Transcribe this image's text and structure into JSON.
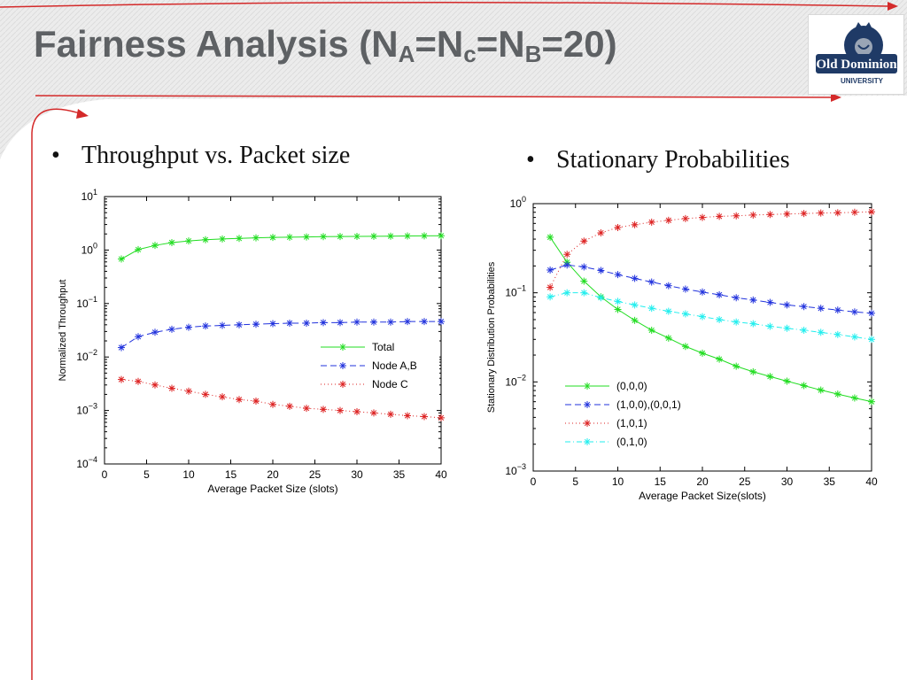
{
  "slide": {
    "title_main": "Fairness Analysis (N",
    "title_sub_a": "A",
    "title_eq1": "=N",
    "title_sub_c": "c",
    "title_eq2": "=N",
    "title_sub_b": "B",
    "title_end": "=20)",
    "accent_color": "#d42a2a",
    "bullet_char": "•",
    "bullet_left": "Throughput vs. Packet size",
    "bullet_right": "Stationary Probabilities",
    "logo": {
      "icon": "old-dominion-monarch-logo",
      "text_main": "Old Dominion",
      "text_sub": "UNIVERSITY",
      "colors": {
        "navy": "#1f3a66",
        "silver": "#9aa5b5"
      }
    }
  },
  "chart_data": [
    {
      "type": "line",
      "yscale": "log",
      "xlabel": "Average Packet Size (slots)",
      "ylabel": "Normalized Throughput",
      "xlim": [
        0,
        40
      ],
      "xticks": [
        "0",
        "5",
        "10",
        "15",
        "20",
        "25",
        "30",
        "35",
        "40"
      ],
      "ylim": [
        0.0001,
        10
      ],
      "yticks": [
        {
          "base": "10",
          "exp": "1",
          "value": 10
        },
        {
          "base": "10",
          "exp": "0",
          "value": 1
        },
        {
          "base": "10",
          "exp": "−1",
          "value": 0.1
        },
        {
          "base": "10",
          "exp": "−2",
          "value": 0.01
        },
        {
          "base": "10",
          "exp": "−3",
          "value": 0.001
        },
        {
          "base": "10",
          "exp": "−4",
          "value": 0.0001
        }
      ],
      "legend_position": "center-right",
      "x": [
        2,
        4,
        6,
        8,
        10,
        12,
        14,
        16,
        18,
        20,
        22,
        24,
        26,
        28,
        30,
        32,
        34,
        36,
        38,
        40
      ],
      "series": [
        {
          "name": "Total",
          "color": "#22dd22",
          "line": "solid",
          "marker": "*",
          "values": [
            0.68,
            1.02,
            1.22,
            1.38,
            1.48,
            1.56,
            1.61,
            1.65,
            1.69,
            1.72,
            1.74,
            1.76,
            1.78,
            1.79,
            1.8,
            1.81,
            1.82,
            1.83,
            1.84,
            1.85
          ]
        },
        {
          "name": "Node A,B",
          "color": "#2233dd",
          "line": "dashed",
          "marker": "*",
          "values": [
            0.015,
            0.024,
            0.029,
            0.033,
            0.036,
            0.038,
            0.039,
            0.04,
            0.041,
            0.042,
            0.043,
            0.043,
            0.044,
            0.044,
            0.045,
            0.045,
            0.045,
            0.046,
            0.046,
            0.046
          ]
        },
        {
          "name": "Node C",
          "color": "#dd2222",
          "line": "dotted",
          "marker": "*",
          "values": [
            0.0038,
            0.0035,
            0.003,
            0.0026,
            0.0023,
            0.002,
            0.0018,
            0.0016,
            0.0015,
            0.0013,
            0.0012,
            0.0011,
            0.00105,
            0.001,
            0.00095,
            0.0009,
            0.00085,
            0.0008,
            0.00077,
            0.00073
          ]
        }
      ]
    },
    {
      "type": "line",
      "yscale": "log",
      "xlabel": "Average Packet Size(slots)",
      "ylabel": "Stationary Distribution Probabilities",
      "xlim": [
        0,
        40
      ],
      "xticks": [
        "0",
        "5",
        "10",
        "15",
        "20",
        "25",
        "30",
        "35",
        "40"
      ],
      "ylim": [
        0.001,
        1
      ],
      "yticks": [
        {
          "base": "10",
          "exp": "0",
          "value": 1
        },
        {
          "base": "10",
          "exp": "−1",
          "value": 0.1
        },
        {
          "base": "10",
          "exp": "−2",
          "value": 0.01
        },
        {
          "base": "10",
          "exp": "−3",
          "value": 0.001
        }
      ],
      "legend_position": "lower-left",
      "x": [
        2,
        4,
        6,
        8,
        10,
        12,
        14,
        16,
        18,
        20,
        22,
        24,
        26,
        28,
        30,
        32,
        34,
        36,
        38,
        40
      ],
      "series": [
        {
          "name": "(0,0,0)",
          "color": "#22dd22",
          "line": "solid",
          "marker": "*",
          "values": [
            0.42,
            0.22,
            0.135,
            0.09,
            0.065,
            0.049,
            0.038,
            0.031,
            0.025,
            0.021,
            0.018,
            0.015,
            0.013,
            0.0115,
            0.0102,
            0.0091,
            0.0081,
            0.0073,
            0.0066,
            0.006
          ]
        },
        {
          "name": "(1,0,0),(0,0,1)",
          "color": "#2233dd",
          "line": "dashed",
          "marker": "*",
          "values": [
            0.18,
            0.205,
            0.195,
            0.178,
            0.16,
            0.145,
            0.132,
            0.12,
            0.11,
            0.102,
            0.095,
            0.088,
            0.083,
            0.078,
            0.073,
            0.07,
            0.067,
            0.064,
            0.061,
            0.059
          ]
        },
        {
          "name": "(1,0,1)",
          "color": "#dd2222",
          "line": "dotted",
          "marker": "*",
          "values": [
            0.115,
            0.27,
            0.38,
            0.47,
            0.54,
            0.58,
            0.62,
            0.65,
            0.68,
            0.7,
            0.72,
            0.73,
            0.745,
            0.755,
            0.765,
            0.775,
            0.785,
            0.79,
            0.8,
            0.81
          ]
        },
        {
          "name": "(0,1,0)",
          "color": "#22eeee",
          "line": "dashdot",
          "marker": "*",
          "values": [
            0.09,
            0.1,
            0.1,
            0.088,
            0.08,
            0.073,
            0.067,
            0.062,
            0.058,
            0.054,
            0.05,
            0.047,
            0.045,
            0.042,
            0.04,
            0.038,
            0.036,
            0.034,
            0.032,
            0.03
          ]
        }
      ]
    }
  ]
}
